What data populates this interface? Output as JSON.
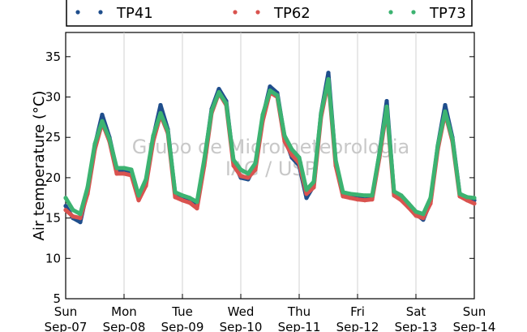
{
  "chart_data": {
    "type": "scatter",
    "ylabel": "Air temperature (°C)",
    "ylim": [
      5,
      38
    ],
    "yticks": [
      5,
      10,
      15,
      20,
      25,
      30,
      35
    ],
    "xlim": [
      "2014-09-07",
      "2014-09-14"
    ],
    "x_ticks": [
      {
        "weekday": "Sun",
        "date": "Sep-07"
      },
      {
        "weekday": "Mon",
        "date": "Sep-08"
      },
      {
        "weekday": "Tue",
        "date": "Sep-09"
      },
      {
        "weekday": "Wed",
        "date": "Sep-10"
      },
      {
        "weekday": "Thu",
        "date": "Sep-11"
      },
      {
        "weekday": "Fri",
        "date": "Sep-12"
      },
      {
        "weekday": "Sat",
        "date": "Sep-13"
      },
      {
        "weekday": "Sun",
        "date": "Sep-14"
      }
    ],
    "grid": "vertical",
    "legend_position": "top",
    "watermark": {
      "line1": "Grupo de Micrometeorologia",
      "line2": "IAG / USP"
    },
    "series": [
      {
        "name": "TP41",
        "color": "#1f4e8c",
        "x": [
          "2014-09-07 00:00",
          "2014-09-07 03:00",
          "2014-09-07 06:00",
          "2014-09-07 09:00",
          "2014-09-07 12:00",
          "2014-09-07 15:00",
          "2014-09-07 18:00",
          "2014-09-07 21:00",
          "2014-09-08 00:00",
          "2014-09-08 03:00",
          "2014-09-08 06:00",
          "2014-09-08 09:00",
          "2014-09-08 12:00",
          "2014-09-08 15:00",
          "2014-09-08 18:00",
          "2014-09-08 21:00",
          "2014-09-09 00:00",
          "2014-09-09 03:00",
          "2014-09-09 06:00",
          "2014-09-09 09:00",
          "2014-09-09 12:00",
          "2014-09-09 15:00",
          "2014-09-09 18:00",
          "2014-09-09 21:00",
          "2014-09-10 00:00",
          "2014-09-10 03:00",
          "2014-09-10 06:00",
          "2014-09-10 09:00",
          "2014-09-10 12:00",
          "2014-09-10 15:00",
          "2014-09-10 18:00",
          "2014-09-10 21:00",
          "2014-09-11 00:00",
          "2014-09-11 03:00",
          "2014-09-11 06:00",
          "2014-09-11 09:00",
          "2014-09-11 12:00",
          "2014-09-11 15:00",
          "2014-09-11 18:00",
          "2014-09-11 21:00",
          "2014-09-12 00:00",
          "2014-09-12 03:00",
          "2014-09-12 06:00",
          "2014-09-12 09:00",
          "2014-09-12 12:00",
          "2014-09-12 15:00",
          "2014-09-12 18:00",
          "2014-09-12 21:00",
          "2014-09-13 00:00",
          "2014-09-13 03:00",
          "2014-09-13 06:00",
          "2014-09-13 09:00",
          "2014-09-13 12:00",
          "2014-09-13 15:00",
          "2014-09-13 18:00",
          "2014-09-13 21:00",
          "2014-09-14 00:00"
        ],
        "y": [
          16.5,
          15.0,
          14.5,
          18.5,
          24.0,
          27.8,
          25.0,
          21.0,
          21.0,
          20.8,
          17.5,
          19.5,
          25.0,
          29.0,
          26.0,
          18.0,
          17.5,
          17.2,
          16.5,
          22.0,
          28.5,
          31.0,
          29.5,
          22.0,
          20.0,
          19.8,
          21.5,
          27.5,
          31.3,
          30.5,
          25.0,
          22.5,
          21.5,
          17.5,
          19.0,
          28.0,
          33.0,
          22.0,
          18.0,
          17.8,
          17.6,
          17.5,
          17.5,
          23.0,
          29.5,
          18.0,
          17.5,
          16.5,
          15.5,
          14.8,
          17.0,
          24.0,
          29.0,
          25.0,
          18.0,
          17.5,
          17.2
        ]
      },
      {
        "name": "TP62",
        "color": "#d9534f",
        "x": [
          "2014-09-07 00:00",
          "2014-09-07 03:00",
          "2014-09-07 06:00",
          "2014-09-07 09:00",
          "2014-09-07 12:00",
          "2014-09-07 15:00",
          "2014-09-07 18:00",
          "2014-09-07 21:00",
          "2014-09-08 00:00",
          "2014-09-08 03:00",
          "2014-09-08 06:00",
          "2014-09-08 09:00",
          "2014-09-08 12:00",
          "2014-09-08 15:00",
          "2014-09-08 18:00",
          "2014-09-08 21:00",
          "2014-09-09 00:00",
          "2014-09-09 03:00",
          "2014-09-09 06:00",
          "2014-09-09 09:00",
          "2014-09-09 12:00",
          "2014-09-09 15:00",
          "2014-09-09 18:00",
          "2014-09-09 21:00",
          "2014-09-10 00:00",
          "2014-09-10 03:00",
          "2014-09-10 06:00",
          "2014-09-10 09:00",
          "2014-09-10 12:00",
          "2014-09-10 15:00",
          "2014-09-10 18:00",
          "2014-09-10 21:00",
          "2014-09-11 00:00",
          "2014-09-11 03:00",
          "2014-09-11 06:00",
          "2014-09-11 09:00",
          "2014-09-11 12:00",
          "2014-09-11 15:00",
          "2014-09-11 18:00",
          "2014-09-11 21:00",
          "2014-09-12 00:00",
          "2014-09-12 03:00",
          "2014-09-12 06:00",
          "2014-09-12 09:00",
          "2014-09-12 12:00",
          "2014-09-12 15:00",
          "2014-09-12 18:00",
          "2014-09-12 21:00",
          "2014-09-13 00:00",
          "2014-09-13 03:00",
          "2014-09-13 06:00",
          "2014-09-13 09:00",
          "2014-09-13 12:00",
          "2014-09-13 15:00",
          "2014-09-13 18:00",
          "2014-09-13 21:00",
          "2014-09-14 00:00"
        ],
        "y": [
          16.0,
          15.2,
          15.0,
          18.0,
          23.5,
          26.8,
          24.5,
          20.5,
          20.5,
          20.3,
          17.2,
          19.0,
          24.5,
          27.8,
          25.5,
          17.6,
          17.2,
          16.9,
          16.2,
          21.5,
          28.0,
          30.5,
          29.0,
          21.5,
          20.2,
          20.0,
          21.0,
          27.0,
          30.6,
          30.0,
          24.5,
          22.8,
          21.8,
          18.0,
          18.8,
          27.5,
          32.0,
          21.5,
          17.7,
          17.5,
          17.3,
          17.2,
          17.3,
          22.5,
          28.5,
          17.8,
          17.2,
          16.3,
          15.3,
          15.0,
          16.8,
          23.5,
          28.0,
          24.5,
          17.7,
          17.2,
          16.8
        ]
      },
      {
        "name": "TP73",
        "color": "#3cb371",
        "x": [
          "2014-09-07 00:00",
          "2014-09-07 03:00",
          "2014-09-07 06:00",
          "2014-09-07 09:00",
          "2014-09-07 12:00",
          "2014-09-07 15:00",
          "2014-09-07 18:00",
          "2014-09-07 21:00",
          "2014-09-08 00:00",
          "2014-09-08 03:00",
          "2014-09-08 06:00",
          "2014-09-08 09:00",
          "2014-09-08 12:00",
          "2014-09-08 15:00",
          "2014-09-08 18:00",
          "2014-09-08 21:00",
          "2014-09-09 00:00",
          "2014-09-09 03:00",
          "2014-09-09 06:00",
          "2014-09-09 09:00",
          "2014-09-09 12:00",
          "2014-09-09 15:00",
          "2014-09-09 18:00",
          "2014-09-09 21:00",
          "2014-09-10 00:00",
          "2014-09-10 03:00",
          "2014-09-10 06:00",
          "2014-09-10 09:00",
          "2014-09-10 12:00",
          "2014-09-10 15:00",
          "2014-09-10 18:00",
          "2014-09-10 21:00",
          "2014-09-11 00:00",
          "2014-09-11 03:00",
          "2014-09-11 06:00",
          "2014-09-11 09:00",
          "2014-09-11 12:00",
          "2014-09-11 15:00",
          "2014-09-11 18:00",
          "2014-09-11 21:00",
          "2014-09-12 00:00",
          "2014-09-12 03:00",
          "2014-09-12 06:00",
          "2014-09-12 09:00",
          "2014-09-12 12:00",
          "2014-09-12 15:00",
          "2014-09-12 18:00",
          "2014-09-12 21:00",
          "2014-09-13 00:00",
          "2014-09-13 03:00",
          "2014-09-13 06:00",
          "2014-09-13 09:00",
          "2014-09-13 12:00",
          "2014-09-13 15:00",
          "2014-09-13 18:00",
          "2014-09-13 21:00",
          "2014-09-14 00:00"
        ],
        "y": [
          17.5,
          16.0,
          15.5,
          18.8,
          24.2,
          27.0,
          24.8,
          21.2,
          21.2,
          21.0,
          17.8,
          19.8,
          25.2,
          28.0,
          25.8,
          18.2,
          17.8,
          17.5,
          17.0,
          22.3,
          28.3,
          30.6,
          29.2,
          22.2,
          21.0,
          20.5,
          21.8,
          27.8,
          30.8,
          30.2,
          25.2,
          23.5,
          22.5,
          18.5,
          19.5,
          28.0,
          32.2,
          22.2,
          18.2,
          18.0,
          17.9,
          17.8,
          17.8,
          23.0,
          28.8,
          18.3,
          17.8,
          16.8,
          15.8,
          15.5,
          17.5,
          24.0,
          28.2,
          24.8,
          18.0,
          17.6,
          17.5
        ]
      }
    ]
  }
}
